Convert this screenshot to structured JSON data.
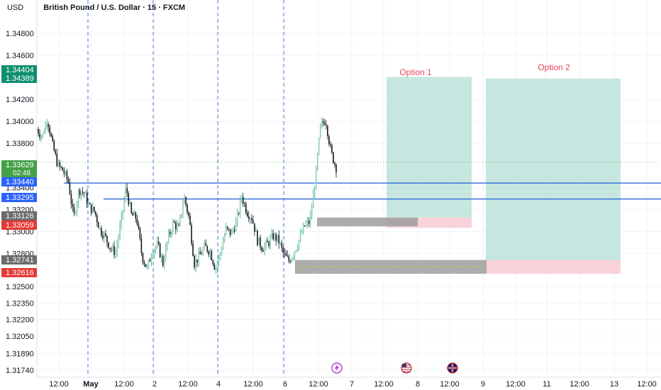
{
  "header": {
    "currency": "USD",
    "symbol": "British Pound / U.S. Dollar · 15 · FXCM"
  },
  "colors": {
    "up_candle": "#26a69a",
    "down_candle": "#131722",
    "zone_green": "#b2dfd4",
    "zone_red": "#f8c7cf",
    "zone_grey": "#9e9e9e",
    "blue_line": "#1e5fd6",
    "session_line": "#4a78d4",
    "option_text": "#e8455f",
    "badge_green": "#0f8f6e",
    "badge_light_green": "#43a047",
    "badge_grey": "#6b6b6b",
    "badge_red": "#e53935",
    "badge_blue": "#2962ff"
  },
  "chart_data": {
    "type": "candlestick",
    "y_ticks": [
      "1.34800",
      "1.34600",
      "1.34200",
      "1.34000",
      "1.33800",
      "1.33400",
      "1.33200",
      "1.33000",
      "1.32800",
      "1.32500",
      "1.32350",
      "1.32200",
      "1.32050",
      "1.31890",
      "1.31740"
    ],
    "x_ticks": [
      "12:00",
      "May",
      "12:00",
      "2",
      "12:00",
      "4",
      "12:00",
      "6",
      "12:00",
      "7",
      "12:00",
      "8",
      "12:00",
      "9",
      "12:00",
      "11",
      "12:00",
      "13",
      "12:00"
    ],
    "price_badges": [
      {
        "label": "1.34404",
        "kind": "green"
      },
      {
        "label": "1.34389",
        "kind": "green"
      },
      {
        "label": "1.33629",
        "sub": "02:48",
        "kind": "light_green"
      },
      {
        "label": "1.33440",
        "kind": "blue"
      },
      {
        "label": "1.33295",
        "kind": "blue"
      },
      {
        "label": "1.33126",
        "kind": "grey"
      },
      {
        "label": "1.33059",
        "kind": "red"
      },
      {
        "label": "1.32741",
        "kind": "grey"
      },
      {
        "label": "1.32616",
        "kind": "red"
      }
    ],
    "horizontal_lines": [
      1.3344,
      1.33295
    ],
    "zones": [
      {
        "label": "Option 1",
        "target_top": 1.34404,
        "entry": 1.33126,
        "stop": 1.33059
      },
      {
        "label": "Option 2",
        "target_top": 1.34389,
        "entry": 1.32741,
        "stop": 1.32616
      }
    ],
    "last_price": 1.33629,
    "countdown": "02:48",
    "series": {
      "close_path": [
        1.3393,
        1.3386,
        1.3403,
        1.3378,
        1.336,
        1.3355,
        1.3345,
        1.3312,
        1.3338,
        1.3335,
        1.3322,
        1.3318,
        1.3302,
        1.3295,
        1.3285,
        1.3281,
        1.3308,
        1.334,
        1.3315,
        1.3312,
        1.3278,
        1.3266,
        1.3283,
        1.3288,
        1.3271,
        1.3294,
        1.3308,
        1.3302,
        1.3332,
        1.3312,
        1.3271,
        1.3278,
        1.3286,
        1.3282,
        1.3266,
        1.3282,
        1.3302,
        1.3298,
        1.3308,
        1.3332,
        1.3318,
        1.3312,
        1.3292,
        1.3285,
        1.3289,
        1.3296,
        1.3292,
        1.3279,
        1.3273,
        1.3282,
        1.3293,
        1.3305,
        1.3309,
        1.3345,
        1.3395,
        1.3402,
        1.3372,
        1.3358
      ]
    }
  },
  "markers": {
    "event_icon": "lightning-icon",
    "us_flag": "us-flag-icon",
    "uk_flag": "uk-flag-icon"
  }
}
